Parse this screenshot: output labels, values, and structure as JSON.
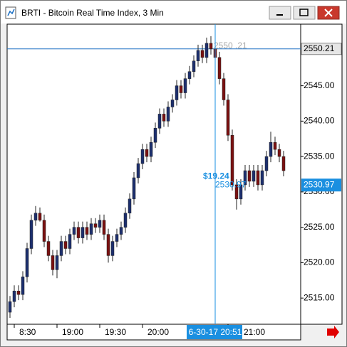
{
  "window": {
    "title": "BRTI - Bitcoin Real Time Index, 3 Min"
  },
  "chart_data": {
    "type": "candlestick",
    "categories": [
      null,
      "8:30",
      null,
      null,
      null,
      null,
      null,
      null,
      null,
      null,
      null,
      "19:00",
      null,
      null,
      null,
      null,
      null,
      null,
      null,
      null,
      null,
      "19:30",
      null,
      null,
      null,
      null,
      null,
      null,
      null,
      null,
      null,
      "20:00",
      null,
      null,
      null,
      null,
      null,
      null,
      null,
      null,
      null,
      null,
      null,
      null,
      null,
      null,
      null,
      null,
      null,
      null,
      null,
      "21:00",
      null,
      null,
      null,
      null,
      null,
      null,
      null,
      null,
      null,
      null,
      null,
      null,
      null
    ],
    "open": [
      2513,
      2514.5,
      2516,
      2515.5,
      2518,
      2522,
      2526,
      2527,
      2526,
      2523,
      2521,
      2519,
      2521,
      2523,
      2522,
      2524,
      2525,
      2523.5,
      2525,
      2524,
      2525.5,
      2525,
      2526,
      2524,
      2521,
      2523,
      2524,
      2525,
      2527,
      2529,
      2532,
      2534,
      2536,
      2535,
      2537,
      2539,
      2541,
      2540,
      2542,
      2543,
      2545,
      2544,
      2546,
      2547,
      2548.5,
      2550,
      2549,
      2551,
      2550.2,
      2549,
      2546,
      2543,
      2538,
      2531,
      2529,
      2531,
      2533,
      2531.5,
      2533,
      2531,
      2533,
      2535,
      2537,
      2536,
      2535
    ],
    "high": [
      2515.3,
      2516.8,
      2516.8,
      2518.8,
      2522.8,
      2526.8,
      2528,
      2527.8,
      2526.8,
      2523.8,
      2521.8,
      2521.8,
      2523.8,
      2523.8,
      2524.8,
      2525.8,
      2525.8,
      2525.8,
      2525.8,
      2526.3,
      2526.3,
      2526.8,
      2526.8,
      2524.8,
      2523.8,
      2524.8,
      2525.8,
      2527.8,
      2529.8,
      2532.8,
      2534.8,
      2536.8,
      2536.8,
      2537.8,
      2539.8,
      2541.8,
      2541.8,
      2542.8,
      2543.8,
      2545.8,
      2545.8,
      2546.8,
      2547.8,
      2549.3,
      2550.8,
      2550.8,
      2551.8,
      2552,
      2550.8,
      2549.8,
      2546.8,
      2543.8,
      2538.8,
      2531.8,
      2531.8,
      2533.8,
      2533.8,
      2533.8,
      2533.8,
      2533.8,
      2535.8,
      2538.5,
      2537.8,
      2536.8,
      2535.8
    ],
    "low": [
      2512.2,
      2513.7,
      2514.7,
      2514.7,
      2517.2,
      2521.2,
      2525.2,
      2525.8,
      2522.2,
      2520.2,
      2518.2,
      2517.8,
      2520.2,
      2521.2,
      2521.2,
      2523.2,
      2522.7,
      2522.7,
      2523.2,
      2523.2,
      2524.2,
      2524.2,
      2523.2,
      2520,
      2520.2,
      2522.2,
      2523.2,
      2524.2,
      2526.2,
      2528.2,
      2531.2,
      2533.2,
      2534.2,
      2534.2,
      2536.2,
      2538.2,
      2539.2,
      2539.2,
      2541.2,
      2542.2,
      2543.2,
      2543.2,
      2545.2,
      2546.2,
      2547.7,
      2548.2,
      2548.2,
      2549.4,
      2548.2,
      2545.2,
      2542.2,
      2537.2,
      2530.2,
      2527.5,
      2528.2,
      2530.2,
      2530.7,
      2530.7,
      2530.2,
      2530.2,
      2532.2,
      2534.2,
      2535.2,
      2534.2,
      2532.2
    ],
    "close": [
      2514.5,
      2516,
      2515.5,
      2518,
      2522,
      2526,
      2527,
      2526,
      2523,
      2521,
      2519,
      2521,
      2523,
      2522,
      2524,
      2525,
      2523.5,
      2525,
      2524,
      2525.5,
      2525,
      2526,
      2524,
      2521,
      2523,
      2524,
      2525,
      2527,
      2529,
      2532,
      2534,
      2536,
      2535,
      2537,
      2539,
      2541,
      2540,
      2542,
      2543,
      2545,
      2544,
      2546,
      2547,
      2548.5,
      2550,
      2549,
      2551,
      2550.2,
      2549,
      2546,
      2543,
      2538,
      2531,
      2529,
      2531,
      2533,
      2531.5,
      2533,
      2531,
      2533,
      2535,
      2537,
      2536,
      2535,
      2533
    ],
    "up_color": "#1c2f6e",
    "down_color": "#7a1010",
    "ylim": [
      2511.3,
      2553.7
    ],
    "yticks": [
      {
        "value": 2515,
        "label": "2515.00"
      },
      {
        "value": 2520,
        "label": "2520.00"
      },
      {
        "value": 2525,
        "label": "2525.00"
      },
      {
        "value": 2530,
        "label": "2530.00"
      },
      {
        "value": 2535,
        "label": "2535.00"
      },
      {
        "value": 2540,
        "label": "2540.00"
      },
      {
        "value": 2545,
        "label": "2545.00"
      }
    ],
    "price_line": {
      "value": 2550.21,
      "label": "2550.21",
      "color": "#1a6fc4"
    },
    "peak_label": "2550 .21",
    "crosshair": {
      "index": 48,
      "time_label": "6-30-17 20:51",
      "value": 2530.97,
      "label": "2530.97",
      "change": "$19.24",
      "color": "#1a8fe0"
    }
  }
}
